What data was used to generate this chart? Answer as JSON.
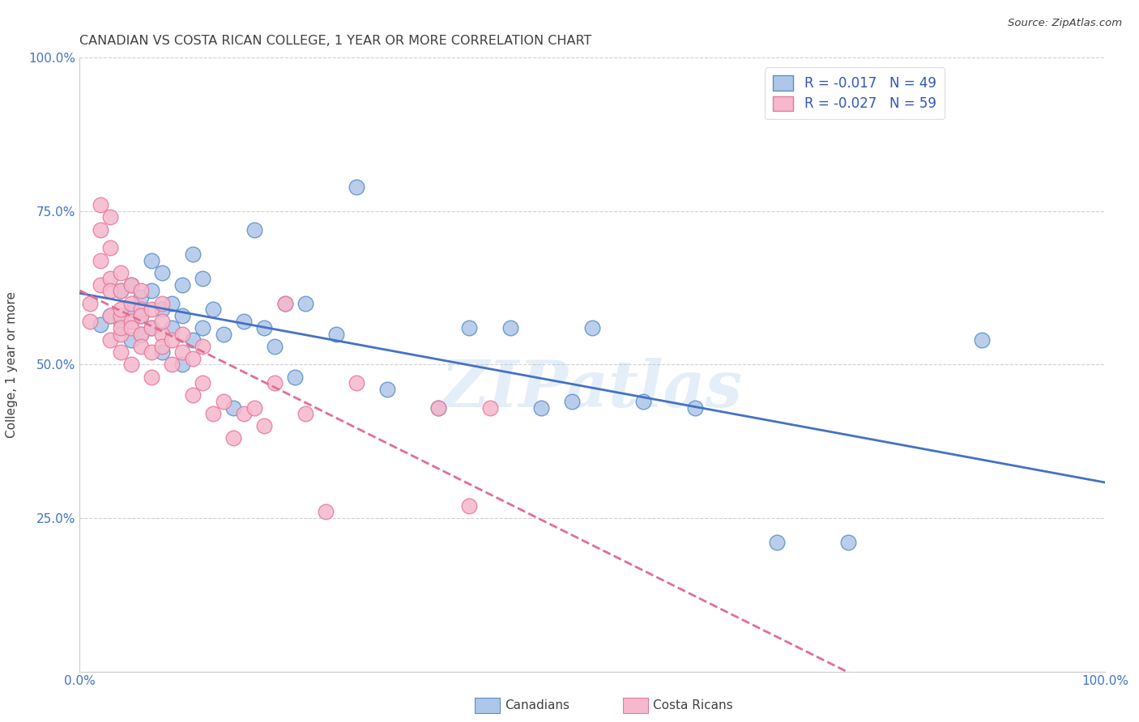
{
  "title": "CANADIAN VS COSTA RICAN COLLEGE, 1 YEAR OR MORE CORRELATION CHART",
  "source": "Source: ZipAtlas.com",
  "ylabel": "College, 1 year or more",
  "watermark": "ZIPatlas",
  "canadian_R": -0.017,
  "canadian_N": 49,
  "costarican_R": -0.027,
  "costarican_N": 59,
  "xlim": [
    0.0,
    1.0
  ],
  "ylim": [
    0.0,
    1.0
  ],
  "ytick_values": [
    0.25,
    0.5,
    0.75,
    1.0
  ],
  "ytick_labels": [
    "25.0%",
    "50.0%",
    "75.0%",
    "100.0%"
  ],
  "canadian_color": "#aec6e8",
  "costarican_color": "#f5b8cc",
  "canadian_edge_color": "#5b8fc9",
  "costarican_edge_color": "#e8799a",
  "canadian_line_color": "#4472c4",
  "costarican_line_color": "#e07090",
  "axis_label_color": "#4472c4",
  "title_color": "#404040",
  "grid_color": "#cccccc",
  "background_color": "#ffffff",
  "legend_r_color": "#3355bb",
  "canadians_x": [
    0.02,
    0.03,
    0.04,
    0.04,
    0.05,
    0.05,
    0.05,
    0.06,
    0.06,
    0.06,
    0.07,
    0.07,
    0.07,
    0.08,
    0.08,
    0.08,
    0.09,
    0.09,
    0.1,
    0.1,
    0.1,
    0.11,
    0.11,
    0.12,
    0.12,
    0.13,
    0.14,
    0.15,
    0.16,
    0.17,
    0.18,
    0.19,
    0.2,
    0.21,
    0.22,
    0.25,
    0.27,
    0.3,
    0.35,
    0.38,
    0.42,
    0.45,
    0.48,
    0.5,
    0.55,
    0.6,
    0.68,
    0.75,
    0.88
  ],
  "canadians_y": [
    0.565,
    0.58,
    0.62,
    0.57,
    0.63,
    0.59,
    0.54,
    0.61,
    0.58,
    0.55,
    0.67,
    0.62,
    0.56,
    0.65,
    0.59,
    0.52,
    0.56,
    0.6,
    0.58,
    0.63,
    0.5,
    0.68,
    0.54,
    0.64,
    0.56,
    0.59,
    0.55,
    0.43,
    0.57,
    0.72,
    0.56,
    0.53,
    0.6,
    0.48,
    0.6,
    0.55,
    0.79,
    0.46,
    0.43,
    0.56,
    0.56,
    0.43,
    0.44,
    0.56,
    0.44,
    0.43,
    0.21,
    0.21,
    0.54
  ],
  "costaricans_x": [
    0.01,
    0.01,
    0.02,
    0.02,
    0.02,
    0.02,
    0.03,
    0.03,
    0.03,
    0.03,
    0.03,
    0.03,
    0.04,
    0.04,
    0.04,
    0.04,
    0.04,
    0.04,
    0.04,
    0.05,
    0.05,
    0.05,
    0.05,
    0.05,
    0.06,
    0.06,
    0.06,
    0.06,
    0.06,
    0.07,
    0.07,
    0.07,
    0.07,
    0.08,
    0.08,
    0.08,
    0.08,
    0.09,
    0.09,
    0.1,
    0.1,
    0.11,
    0.11,
    0.12,
    0.12,
    0.13,
    0.14,
    0.15,
    0.16,
    0.17,
    0.18,
    0.19,
    0.2,
    0.22,
    0.24,
    0.27,
    0.35,
    0.38,
    0.4
  ],
  "costaricans_y": [
    0.6,
    0.57,
    0.63,
    0.67,
    0.72,
    0.76,
    0.64,
    0.58,
    0.62,
    0.69,
    0.54,
    0.74,
    0.58,
    0.65,
    0.62,
    0.55,
    0.59,
    0.56,
    0.52,
    0.6,
    0.63,
    0.57,
    0.56,
    0.5,
    0.59,
    0.55,
    0.62,
    0.53,
    0.58,
    0.56,
    0.52,
    0.59,
    0.48,
    0.55,
    0.6,
    0.53,
    0.57,
    0.54,
    0.5,
    0.55,
    0.52,
    0.45,
    0.51,
    0.47,
    0.53,
    0.42,
    0.44,
    0.38,
    0.42,
    0.43,
    0.4,
    0.47,
    0.6,
    0.42,
    0.26,
    0.47,
    0.43,
    0.27,
    0.43
  ]
}
